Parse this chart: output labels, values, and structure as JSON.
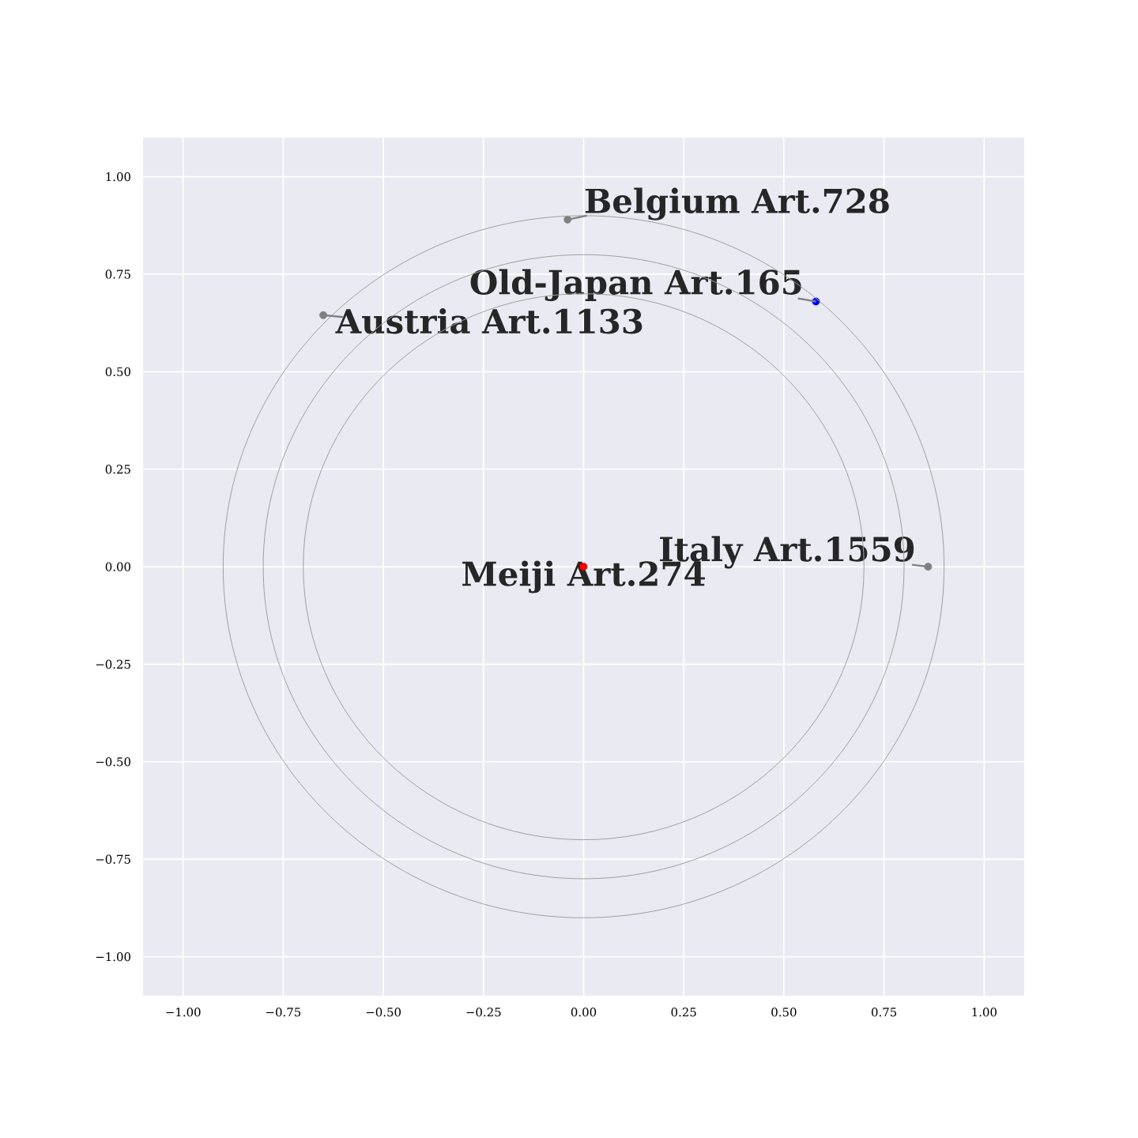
{
  "chart_data": {
    "type": "scatter",
    "series": [
      {
        "type": "scatter",
        "marker": "circle",
        "x": [
          0,
          -0.04,
          0.58,
          -0.65,
          0.86
        ],
        "values": [
          0,
          0.89,
          0.68,
          0.645,
          0
        ],
        "colors": [
          "#ff0000",
          "#808080",
          "#0000ff",
          "#808080",
          "#808080"
        ]
      }
    ],
    "annotations": [
      {
        "text": "Meiji Art.274",
        "x": 0,
        "y": 0
      },
      {
        "text": "Belgium Art.728",
        "x": -0.04,
        "y": 0.89
      },
      {
        "text": "Old-Japan Art.165",
        "x": 0.58,
        "y": 0.68
      },
      {
        "text": "Austria Art.1133",
        "x": -0.65,
        "y": 0.645
      },
      {
        "text": "Italy Art.1559",
        "x": 0.86,
        "y": 0
      }
    ],
    "xlim": [
      -1.1,
      1.1
    ],
    "ylim": [
      -1.1,
      1.1
    ],
    "xticks": [
      {
        "value": -1,
        "label": "−1.00"
      },
      {
        "value": -0.75,
        "label": "−0.75"
      },
      {
        "value": -0.5,
        "label": "−0.50"
      },
      {
        "value": -0.25,
        "label": "−0.25"
      },
      {
        "value": 0,
        "label": "0.00"
      },
      {
        "value": 0.25,
        "label": "0.25"
      },
      {
        "value": 0.5,
        "label": "0.50"
      },
      {
        "value": 0.75,
        "label": "0.75"
      },
      {
        "value": 1,
        "label": "1.00"
      }
    ],
    "yticks": [
      {
        "value": -1,
        "label": "−1.00"
      },
      {
        "value": -0.75,
        "label": "−0.75"
      },
      {
        "value": -0.5,
        "label": "−0.50"
      },
      {
        "value": -0.25,
        "label": "−0.25"
      },
      {
        "value": 0,
        "label": "0.00"
      },
      {
        "value": 0.25,
        "label": "0.25"
      },
      {
        "value": 0.5,
        "label": "0.50"
      },
      {
        "value": 0.75,
        "label": "0.75"
      },
      {
        "value": 1,
        "label": "1.00"
      }
    ],
    "grid": true
  }
}
